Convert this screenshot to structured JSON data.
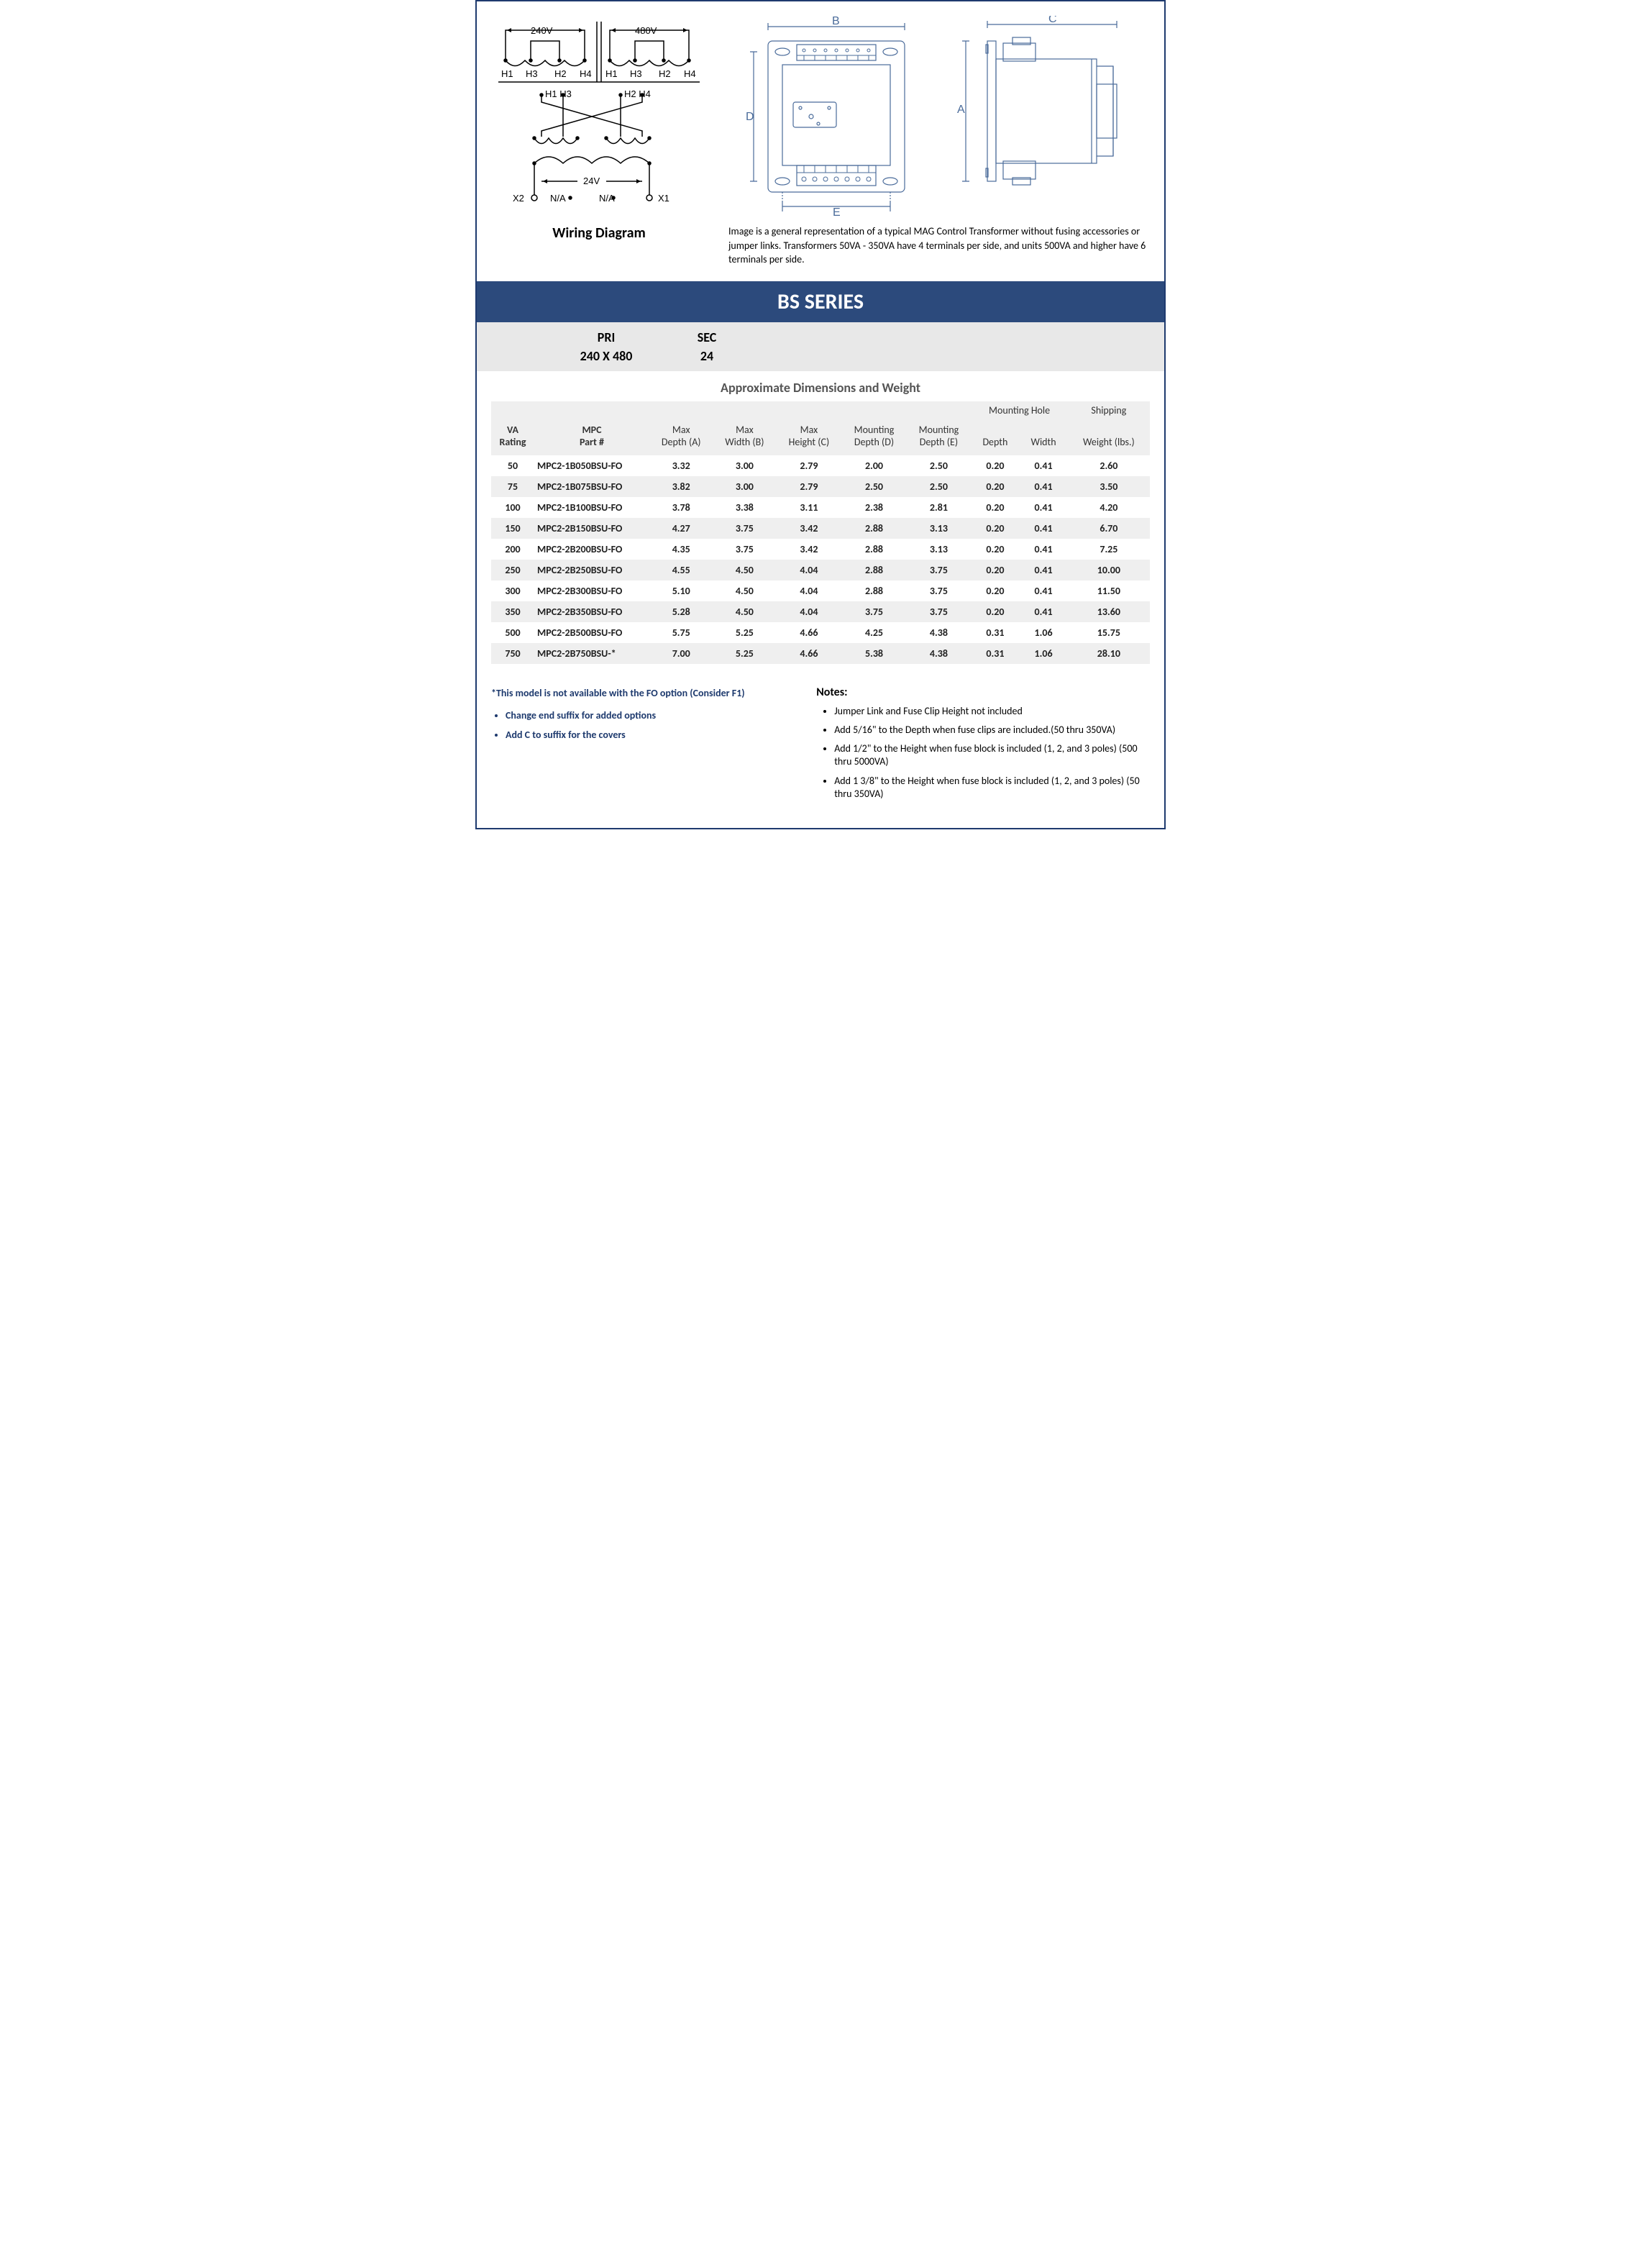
{
  "wiring": {
    "caption": "Wiring Diagram",
    "primary_240": "240V",
    "primary_480": "480V",
    "terminals_top_row": "H1  H3  H2  H4",
    "terminals_cross_left": "H1  H3",
    "terminals_cross_right": "H2  H4",
    "secondary_v": "24V",
    "x2": "X2",
    "x1": "X1",
    "na": "N/A"
  },
  "dim_labels": {
    "A": "A",
    "B": "B",
    "C": "C",
    "D": "D",
    "E": "E"
  },
  "description": "Image is a general representation of a typical MAG Control Transformer  without fusing accessories or jumper links.  Transformers 50VA - 350VA  have 4 terminals per side, and units 500VA and higher have 6 terminals per side.",
  "series_title": "BS SERIES",
  "pri_label": "PRI",
  "sec_label": "SEC",
  "pri_value": "240 X 480",
  "sec_value": "24",
  "dim_heading": "Approximate Dimensions and Weight",
  "columns": {
    "va": "VA Rating",
    "part": "MPC Part #",
    "depthA": "Max Depth (A)",
    "widthB": "Max Width (B)",
    "heightC": "Max Height (C)",
    "mountD": "Mounting Depth (D)",
    "mountE": "Mounting Depth (E)",
    "mount_group": "Mounting Hole",
    "mh_depth": "Depth",
    "mh_width": "Width",
    "ship_group": "Shipping",
    "ship_wt": "Weight (lbs.)"
  },
  "rows": [
    {
      "va": "50",
      "part": "MPC2-1B050BSU-FO",
      "a": "3.32",
      "b": "3.00",
      "c": "2.79",
      "d": "2.00",
      "e": "2.50",
      "mhd": "0.20",
      "mhw": "0.41",
      "wt": "2.60"
    },
    {
      "va": "75",
      "part": "MPC2-1B075BSU-FO",
      "a": "3.82",
      "b": "3.00",
      "c": "2.79",
      "d": "2.50",
      "e": "2.50",
      "mhd": "0.20",
      "mhw": "0.41",
      "wt": "3.50"
    },
    {
      "va": "100",
      "part": "MPC2-1B100BSU-FO",
      "a": "3.78",
      "b": "3.38",
      "c": "3.11",
      "d": "2.38",
      "e": "2.81",
      "mhd": "0.20",
      "mhw": "0.41",
      "wt": "4.20"
    },
    {
      "va": "150",
      "part": "MPC2-2B150BSU-FO",
      "a": "4.27",
      "b": "3.75",
      "c": "3.42",
      "d": "2.88",
      "e": "3.13",
      "mhd": "0.20",
      "mhw": "0.41",
      "wt": "6.70"
    },
    {
      "va": "200",
      "part": "MPC2-2B200BSU-FO",
      "a": "4.35",
      "b": "3.75",
      "c": "3.42",
      "d": "2.88",
      "e": "3.13",
      "mhd": "0.20",
      "mhw": "0.41",
      "wt": "7.25"
    },
    {
      "va": "250",
      "part": "MPC2-2B250BSU-FO",
      "a": "4.55",
      "b": "4.50",
      "c": "4.04",
      "d": "2.88",
      "e": "3.75",
      "mhd": "0.20",
      "mhw": "0.41",
      "wt": "10.00"
    },
    {
      "va": "300",
      "part": "MPC2-2B300BSU-FO",
      "a": "5.10",
      "b": "4.50",
      "c": "4.04",
      "d": "2.88",
      "e": "3.75",
      "mhd": "0.20",
      "mhw": "0.41",
      "wt": "11.50"
    },
    {
      "va": "350",
      "part": "MPC2-2B350BSU-FO",
      "a": "5.28",
      "b": "4.50",
      "c": "4.04",
      "d": "3.75",
      "e": "3.75",
      "mhd": "0.20",
      "mhw": "0.41",
      "wt": "13.60"
    },
    {
      "va": "500",
      "part": "MPC2-2B500BSU-FO",
      "a": "5.75",
      "b": "5.25",
      "c": "4.66",
      "d": "4.25",
      "e": "4.38",
      "mhd": "0.31",
      "mhw": "1.06",
      "wt": "15.75"
    },
    {
      "va": "750",
      "part": "MPC2-2B750BSU-*",
      "a": "7.00",
      "b": "5.25",
      "c": "4.66",
      "d": "5.38",
      "e": "4.38",
      "mhd": "0.31",
      "mhw": "1.06",
      "wt": "28.10"
    }
  ],
  "left_notes": {
    "asterisk": "*This model is not available with the FO option (Consider F1)",
    "bullets": [
      "Change end suffix for added options",
      "Add C to suffix for the covers"
    ]
  },
  "right_notes": {
    "title": "Notes:",
    "bullets": [
      "Jumper Link and Fuse Clip Height not included",
      "Add 5/16\" to the Depth when fuse clips are included.(50 thru 350VA)",
      "Add 1/2\" to the Height when fuse block is included (1, 2, and 3 poles) (500 thru 5000VA)",
      "Add 1 3/8\" to the Height when fuse block is included (1, 2, and 3 poles) (50 thru 350VA)"
    ]
  },
  "colors": {
    "border": "#1e3a6e",
    "banner": "#2c4a7c",
    "header_bg": "#efefef",
    "row_alt": "#efefef",
    "diagram_stroke": "#4a6b9a",
    "note_blue": "#1e3a6e"
  }
}
